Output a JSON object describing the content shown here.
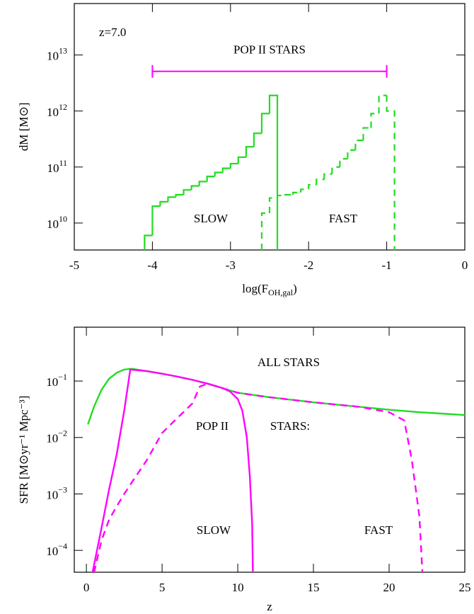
{
  "chart_data": [
    {
      "type": "histogram",
      "annotations": [
        "z=7.0",
        "SLOW",
        "FAST"
      ],
      "ylabel": "dM [M⊙]",
      "xlabel": [
        "log(F",
        "OH,gal",
        ")"
      ],
      "xlim": [
        -5,
        0
      ],
      "xticks": [
        -5,
        -4,
        -3,
        -2,
        -1,
        0
      ],
      "ylim": [
        3300000000.0,
        83000000000000.0
      ],
      "ylog": true,
      "yticks": [
        {
          "value": 10000000000.0,
          "label": "10",
          "exponent": "10"
        },
        {
          "value": 100000000000.0,
          "label": "10",
          "exponent": "11"
        },
        {
          "value": 1000000000000.0,
          "label": "10",
          "exponent": "12"
        },
        {
          "value": 10000000000000.0,
          "label": "10",
          "exponent": "13"
        }
      ],
      "range_bar": {
        "label": "POP II STARS",
        "x": [
          -4,
          -1
        ],
        "y": 5100000000000.0,
        "color": "#ff00ff"
      },
      "series": [
        {
          "color": "#22dd22",
          "dash": false,
          "bins": [
            -4.1,
            -4.0,
            -3.9,
            -3.8,
            -3.7,
            -3.6,
            -3.5,
            -3.4,
            -3.3,
            -3.2,
            -3.1,
            -3.0,
            -2.9,
            -2.8,
            -2.7,
            -2.6,
            -2.5,
            -2.4
          ],
          "counts": [
            6000000000.0,
            20000000000.0,
            24000000000.0,
            29000000000.0,
            32000000000.0,
            39000000000.0,
            46000000000.0,
            55000000000.0,
            68000000000.0,
            80000000000.0,
            95000000000.0,
            115000000000.0,
            150000000000.0,
            230000000000.0,
            400000000000.0,
            900000000000.0,
            1900000000000.0
          ]
        },
        {
          "color": "#22dd22",
          "dash": true,
          "bins": [
            -2.6,
            -2.5,
            -2.4,
            -2.3,
            -2.2,
            -2.1,
            -2.0,
            -1.9,
            -1.8,
            -1.7,
            -1.6,
            -1.5,
            -1.4,
            -1.3,
            -1.2,
            -1.1,
            -1.0,
            -0.9
          ],
          "counts": [
            15000000000.0,
            28000000000.0,
            31000000000.0,
            32000000000.0,
            35000000000.0,
            40000000000.0,
            48000000000.0,
            60000000000.0,
            75000000000.0,
            100000000000.0,
            140000000000.0,
            200000000000.0,
            300000000000.0,
            500000000000.0,
            900000000000.0,
            1900000000000.0,
            1000000000000.0
          ]
        }
      ]
    },
    {
      "type": "line",
      "annotations": [
        {
          "text": "ALL STARS",
          "color": "#22dd22"
        },
        {
          "text": "POP II",
          "color": "#ff00ff"
        },
        {
          "text": "STARS:",
          "color": "#ff00ff"
        },
        {
          "text": "SLOW",
          "color": "#000000"
        },
        {
          "text": "FAST",
          "color": "#000000"
        }
      ],
      "ylabel": "SFR [M⊙yr⁻¹ Mpc⁻³]",
      "xlabel": "z",
      "xlim": [
        -0.8,
        25
      ],
      "xticks": [
        0,
        5,
        10,
        15,
        20,
        25
      ],
      "ylim": [
        4.1e-05,
        0.9
      ],
      "ylog": true,
      "yticks": [
        {
          "value": 0.0001,
          "label": "10",
          "exponent": "−4"
        },
        {
          "value": 0.001,
          "label": "10",
          "exponent": "−3"
        },
        {
          "value": 0.01,
          "label": "10",
          "exponent": "−2"
        },
        {
          "value": 0.1,
          "label": "10",
          "exponent": "−1"
        }
      ],
      "series": [
        {
          "color": "#22dd22",
          "dash": false,
          "x": [
            0.1,
            0.5,
            1,
            1.5,
            2,
            2.5,
            3,
            4,
            5,
            6,
            7,
            8,
            10,
            12,
            15,
            18,
            20,
            22,
            25
          ],
          "values": [
            0.017,
            0.035,
            0.07,
            0.11,
            0.14,
            0.16,
            0.165,
            0.15,
            0.135,
            0.12,
            0.105,
            0.09,
            0.062,
            0.052,
            0.042,
            0.035,
            0.031,
            0.028,
            0.025
          ]
        },
        {
          "color": "#ff00ff",
          "dash": false,
          "x": [
            0.4,
            0.7,
            1,
            1.5,
            2,
            2.5,
            2.9,
            4,
            5,
            6,
            7,
            8,
            9,
            9.5,
            10,
            10.3,
            10.6,
            10.8,
            10.95,
            11
          ],
          "values": [
            4e-05,
            0.0001,
            0.00025,
            0.0012,
            0.005,
            0.03,
            0.16,
            0.15,
            0.135,
            0.12,
            0.105,
            0.09,
            0.075,
            0.065,
            0.048,
            0.03,
            0.01,
            0.002,
            0.0003,
            4e-05
          ]
        },
        {
          "color": "#ff00ff",
          "dash": true,
          "x": [
            0.5,
            1,
            1.5,
            2,
            2.5,
            3,
            4,
            5,
            6,
            7,
            7.5,
            8,
            10,
            12,
            15,
            18,
            20,
            21,
            21.5,
            22,
            22.2
          ],
          "values": [
            4e-05,
            0.00015,
            0.00035,
            0.0006,
            0.001,
            0.0016,
            0.004,
            0.012,
            0.022,
            0.04,
            0.08,
            0.09,
            0.062,
            0.052,
            0.042,
            0.035,
            0.028,
            0.02,
            0.004,
            0.0004,
            4e-05
          ]
        }
      ]
    }
  ]
}
